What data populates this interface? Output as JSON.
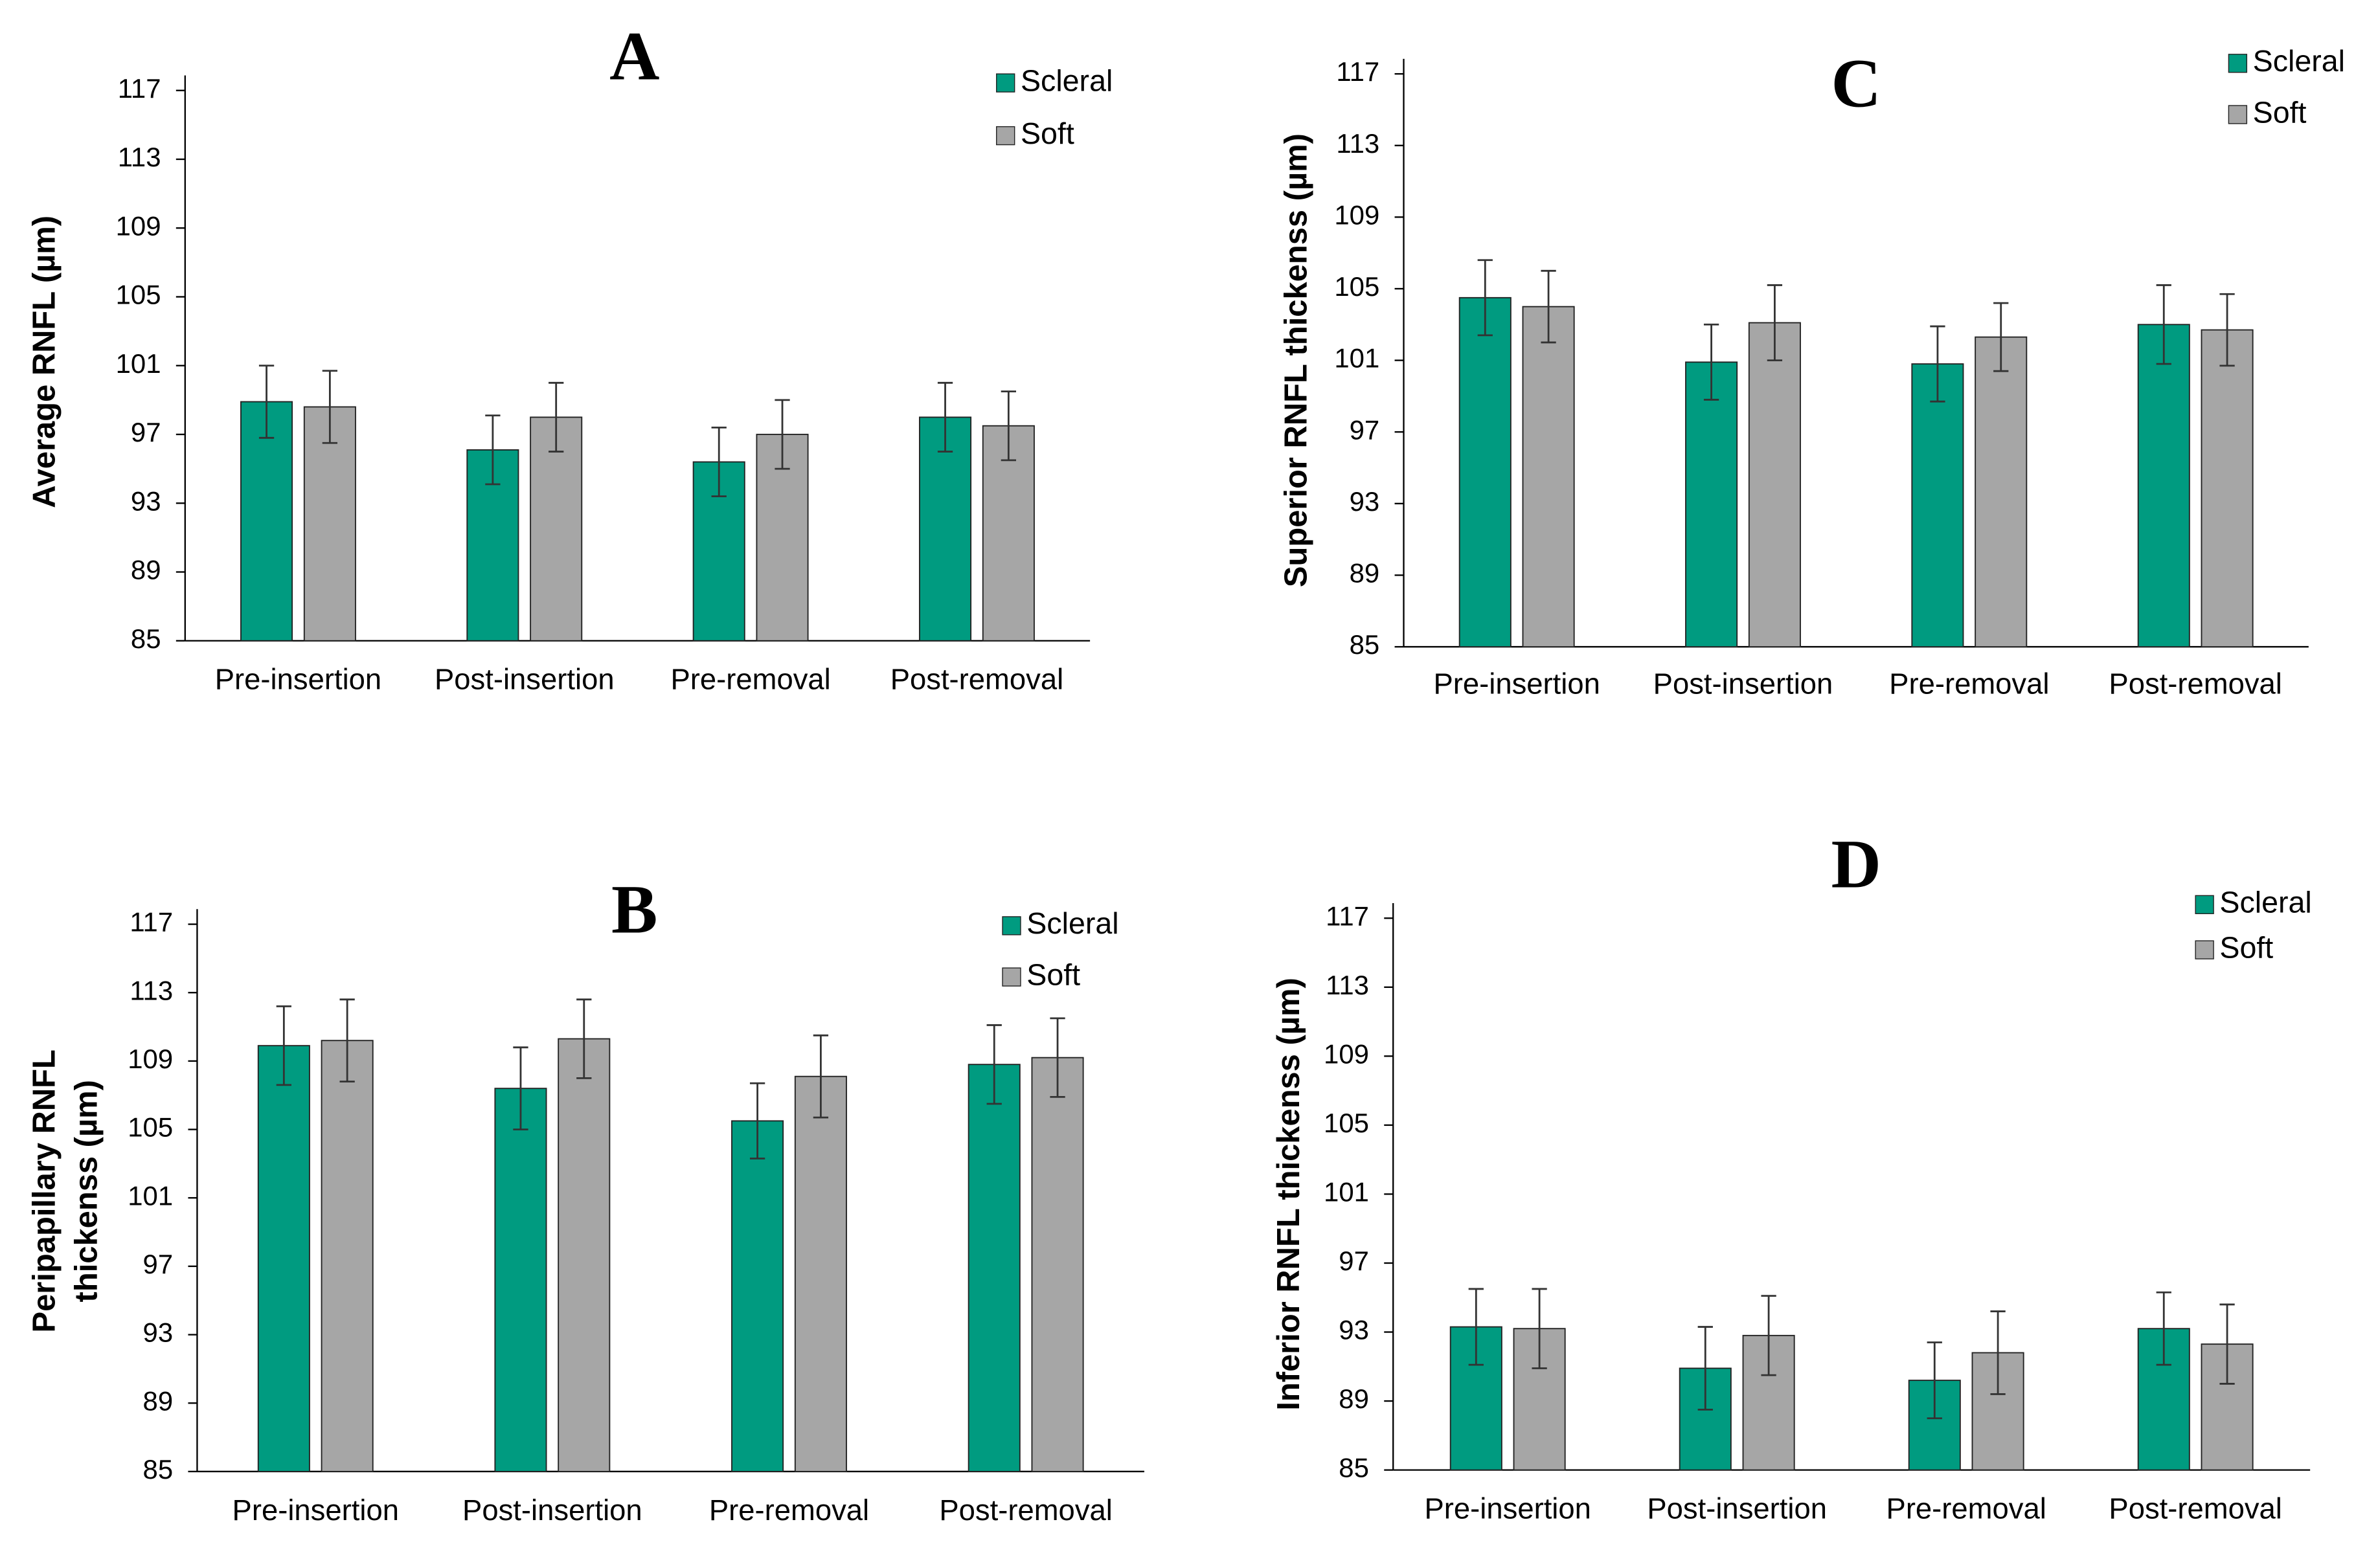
{
  "chart_data": [
    {
      "type": "bar",
      "title": "A",
      "ylabel": "Average RNFL (µm)",
      "categories": [
        "Pre-insertion",
        "Post-insertion",
        "Pre-removal",
        "Post-removal"
      ],
      "series": [
        {
          "name": "Scleral",
          "color": "#009b80",
          "values": [
            98.9,
            96.1,
            95.4,
            98.0
          ],
          "errors": [
            2.1,
            2.0,
            2.0,
            2.0
          ]
        },
        {
          "name": "Soft",
          "color": "#a6a6a6",
          "values": [
            98.6,
            98.0,
            97.0,
            97.5
          ],
          "errors": [
            2.1,
            2.0,
            2.0,
            2.0
          ]
        }
      ],
      "ylim": [
        85,
        117
      ],
      "yticks": [
        85,
        89,
        93,
        97,
        101,
        105,
        109,
        113,
        117
      ],
      "grid": false,
      "legend": "top-right"
    },
    {
      "type": "bar",
      "title": "B",
      "ylabel": [
        "Peripapillary RNFL",
        "thickenss (µm)"
      ],
      "categories": [
        "Pre-insertion",
        "Post-insertion",
        "Pre-removal",
        "Post-removal"
      ],
      "series": [
        {
          "name": "Scleral",
          "color": "#009b80",
          "values": [
            109.9,
            107.4,
            105.5,
            108.8
          ],
          "errors": [
            2.3,
            2.4,
            2.2,
            2.3
          ]
        },
        {
          "name": "Soft",
          "color": "#a6a6a6",
          "values": [
            110.2,
            110.3,
            108.1,
            109.2
          ],
          "errors": [
            2.4,
            2.3,
            2.4,
            2.3
          ]
        }
      ],
      "ylim": [
        85,
        117
      ],
      "yticks": [
        85,
        89,
        93,
        97,
        101,
        105,
        109,
        113,
        117
      ],
      "grid": false,
      "legend": "top-right"
    },
    {
      "type": "bar",
      "title": "C",
      "ylabel": "Superior RNFL thickenss (µm)",
      "categories": [
        "Pre-insertion",
        "Post-insertion",
        "Pre-removal",
        "Post-removal"
      ],
      "series": [
        {
          "name": "Scleral",
          "color": "#009b80",
          "values": [
            104.5,
            100.9,
            100.8,
            103.0
          ],
          "errors": [
            2.1,
            2.1,
            2.1,
            2.2
          ]
        },
        {
          "name": "Soft",
          "color": "#a6a6a6",
          "values": [
            104.0,
            103.1,
            102.3,
            102.7
          ],
          "errors": [
            2.0,
            2.1,
            1.9,
            2.0
          ]
        }
      ],
      "ylim": [
        85,
        117
      ],
      "yticks": [
        85,
        89,
        93,
        97,
        101,
        105,
        109,
        113,
        117
      ],
      "grid": false,
      "legend": "top-right"
    },
    {
      "type": "bar",
      "title": "D",
      "ylabel": "Inferior RNFL thickenss (µm)",
      "categories": [
        "Pre-insertion",
        "Post-insertion",
        "Pre-removal",
        "Post-removal"
      ],
      "series": [
        {
          "name": "Scleral",
          "color": "#009b80",
          "values": [
            93.3,
            90.9,
            90.2,
            93.2
          ],
          "errors": [
            2.2,
            2.4,
            2.2,
            2.1
          ]
        },
        {
          "name": "Soft",
          "color": "#a6a6a6",
          "values": [
            93.2,
            92.8,
            91.8,
            92.3
          ],
          "errors": [
            2.3,
            2.3,
            2.4,
            2.3
          ]
        }
      ],
      "ylim": [
        85,
        117
      ],
      "yticks": [
        85,
        89,
        93,
        97,
        101,
        105,
        109,
        113,
        117
      ],
      "grid": false,
      "legend": "top-right"
    }
  ]
}
